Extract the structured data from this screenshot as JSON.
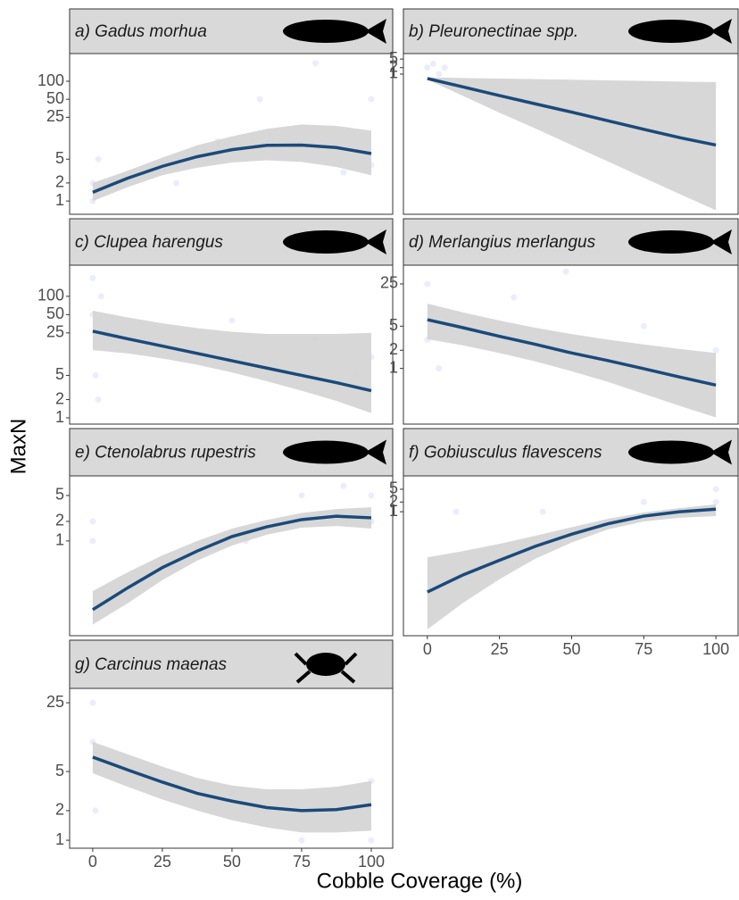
{
  "chart_data": {
    "type": "line",
    "yscale": "log",
    "xlabel": "Cobble Coverage (%)",
    "ylabel": "MaxN",
    "xlim": [
      -8.3,
      107.7
    ],
    "xticks": [
      0,
      25,
      50,
      75,
      100
    ],
    "line_color": "#1b4a7a",
    "ribbon_color": "#d3d3d3",
    "point_color": "#8080ff",
    "panels": [
      {
        "title": "a) Gadus morhua",
        "ylim": [
          0.6,
          290
        ],
        "yticks": [
          1,
          2,
          5,
          25,
          50,
          100
        ],
        "show_x_axis": false,
        "fit": {
          "x": [
            0,
            12.5,
            25,
            37.5,
            50,
            62.5,
            75,
            87.5,
            100
          ],
          "values": [
            1.4,
            2.4,
            3.8,
            5.5,
            7.2,
            8.5,
            8.6,
            7.8,
            6.2
          ],
          "upper": [
            2.0,
            3.2,
            5.3,
            8.5,
            12,
            16,
            19,
            18,
            15
          ],
          "lower": [
            1.0,
            1.7,
            2.7,
            3.6,
            4.4,
            4.8,
            4.5,
            3.7,
            2.7
          ]
        },
        "points": {
          "x": [
            0,
            0,
            2,
            30,
            45,
            60,
            80,
            90,
            100,
            100
          ],
          "y": [
            1,
            2,
            5,
            2,
            10,
            50,
            200,
            3,
            50,
            4
          ]
        }
      },
      {
        "title": "b) Pleuronectinae spp.",
        "ylim": [
          3e-07,
          9
        ],
        "yticks": [
          1,
          2,
          5
        ],
        "show_x_axis": false,
        "fit": {
          "x": [
            0,
            12.5,
            25,
            37.5,
            50,
            62.5,
            75,
            87.5,
            100
          ],
          "values": [
            0.62,
            0.25,
            0.1,
            0.041,
            0.017,
            0.0068,
            0.0027,
            0.0011,
            0.0005
          ],
          "upper": [
            0.7,
            0.66,
            0.62,
            0.58,
            0.55,
            0.51,
            0.48,
            0.45,
            0.42
          ],
          "lower": [
            0.55,
            0.095,
            0.016,
            0.0029,
            0.0005,
            8.7e-05,
            1.5e-05,
            2.6e-06,
            4.6e-07
          ]
        },
        "points": {
          "x": [
            0,
            2,
            4,
            6
          ],
          "y": [
            2,
            3,
            1,
            2
          ]
        }
      },
      {
        "title": "c) Clupea harengus",
        "ylim": [
          0.79,
          325
        ],
        "yticks": [
          1,
          2,
          5,
          25,
          50,
          100
        ],
        "show_x_axis": false,
        "fit": {
          "x": [
            0,
            12.5,
            25,
            37.5,
            50,
            62.5,
            75,
            87.5,
            100
          ],
          "values": [
            26.7,
            20,
            15.2,
            11.5,
            8.7,
            6.6,
            5.0,
            3.8,
            2.8
          ],
          "upper": [
            58,
            45,
            36,
            30,
            26,
            24,
            24,
            24,
            25
          ],
          "lower": [
            13,
            11.5,
            9.5,
            7.5,
            5.6,
            4.0,
            2.8,
            1.9,
            1.2
          ]
        },
        "points": {
          "x": [
            0,
            0,
            1,
            2,
            3,
            50,
            80,
            95,
            100
          ],
          "y": [
            200,
            50,
            5,
            2,
            100,
            40,
            20,
            5,
            10
          ]
        }
      },
      {
        "title": "d) Merlangius merlangus",
        "ylim": [
          0.12,
          51
        ],
        "yticks": [
          1,
          2,
          5,
          25
        ],
        "show_x_axis": false,
        "fit": {
          "x": [
            0,
            12.5,
            25,
            37.5,
            50,
            62.5,
            75,
            87.5,
            100
          ],
          "values": [
            6.4,
            4.7,
            3.4,
            2.5,
            1.8,
            1.35,
            0.99,
            0.72,
            0.53
          ],
          "upper": [
            11.8,
            8.4,
            6.2,
            4.7,
            3.7,
            3.0,
            2.5,
            2.1,
            1.8
          ],
          "lower": [
            3.05,
            2.4,
            1.8,
            1.3,
            0.9,
            0.6,
            0.38,
            0.24,
            0.155
          ]
        },
        "points": {
          "x": [
            0,
            0,
            2,
            4,
            30,
            48,
            75,
            100
          ],
          "y": [
            25,
            3,
            10,
            1,
            15,
            40,
            5,
            2
          ]
        }
      },
      {
        "title": "e) Ctenolabrus rupestris",
        "ylim": [
          0.035,
          10
        ],
        "yticks": [
          1,
          2,
          5
        ],
        "show_x_axis": false,
        "fit": {
          "x": [
            0,
            12.5,
            25,
            37.5,
            50,
            62.5,
            75,
            87.5,
            100
          ],
          "values": [
            0.088,
            0.19,
            0.39,
            0.7,
            1.17,
            1.65,
            2.13,
            2.4,
            2.27
          ],
          "upper": [
            0.17,
            0.33,
            0.6,
            1.0,
            1.55,
            2.1,
            2.7,
            3.1,
            3.3
          ],
          "lower": [
            0.052,
            0.11,
            0.25,
            0.5,
            0.85,
            1.25,
            1.6,
            1.7,
            1.55
          ]
        },
        "points": {
          "x": [
            0,
            0,
            55,
            75,
            90,
            100,
            100
          ],
          "y": [
            2,
            1,
            1,
            5,
            7,
            5,
            2
          ]
        }
      },
      {
        "title": "f) Gobiusculus flavescens",
        "ylim": [
          0.00014,
          13
        ],
        "yticks": [
          1,
          2,
          5
        ],
        "show_x_axis": true,
        "fit": {
          "x": [
            0,
            12.5,
            25,
            37.5,
            50,
            62.5,
            75,
            87.5,
            100
          ],
          "values": [
            0.0032,
            0.011,
            0.031,
            0.085,
            0.2,
            0.42,
            0.73,
            1.0,
            1.2
          ],
          "upper": [
            0.038,
            0.06,
            0.1,
            0.18,
            0.33,
            0.6,
            0.95,
            1.3,
            1.7
          ],
          "lower": [
            0.00022,
            0.0015,
            0.008,
            0.035,
            0.11,
            0.28,
            0.5,
            0.65,
            0.73
          ]
        },
        "points": {
          "x": [
            10,
            40,
            75,
            90,
            100,
            100
          ],
          "y": [
            1,
            1,
            2,
            1,
            5,
            2
          ]
        }
      },
      {
        "title": "g) Carcinus maenas",
        "ylim": [
          0.83,
          35
        ],
        "yticks": [
          1,
          2,
          5,
          25
        ],
        "show_x_axis": true,
        "fit": {
          "x": [
            0,
            12.5,
            25,
            37.5,
            50,
            62.5,
            75,
            87.5,
            100
          ],
          "values": [
            7.0,
            5.2,
            3.9,
            3.0,
            2.5,
            2.15,
            2.0,
            2.05,
            2.3
          ],
          "upper": [
            10,
            7.5,
            5.6,
            4.3,
            3.6,
            3.3,
            3.3,
            3.5,
            4.0
          ],
          "lower": [
            4.8,
            3.5,
            2.6,
            2.0,
            1.6,
            1.35,
            1.2,
            1.2,
            1.25
          ]
        },
        "points": {
          "x": [
            0,
            0,
            1,
            2,
            25,
            50,
            75,
            100,
            100
          ],
          "y": [
            25,
            10,
            2,
            5,
            4,
            3,
            1,
            4,
            1
          ]
        }
      }
    ]
  }
}
